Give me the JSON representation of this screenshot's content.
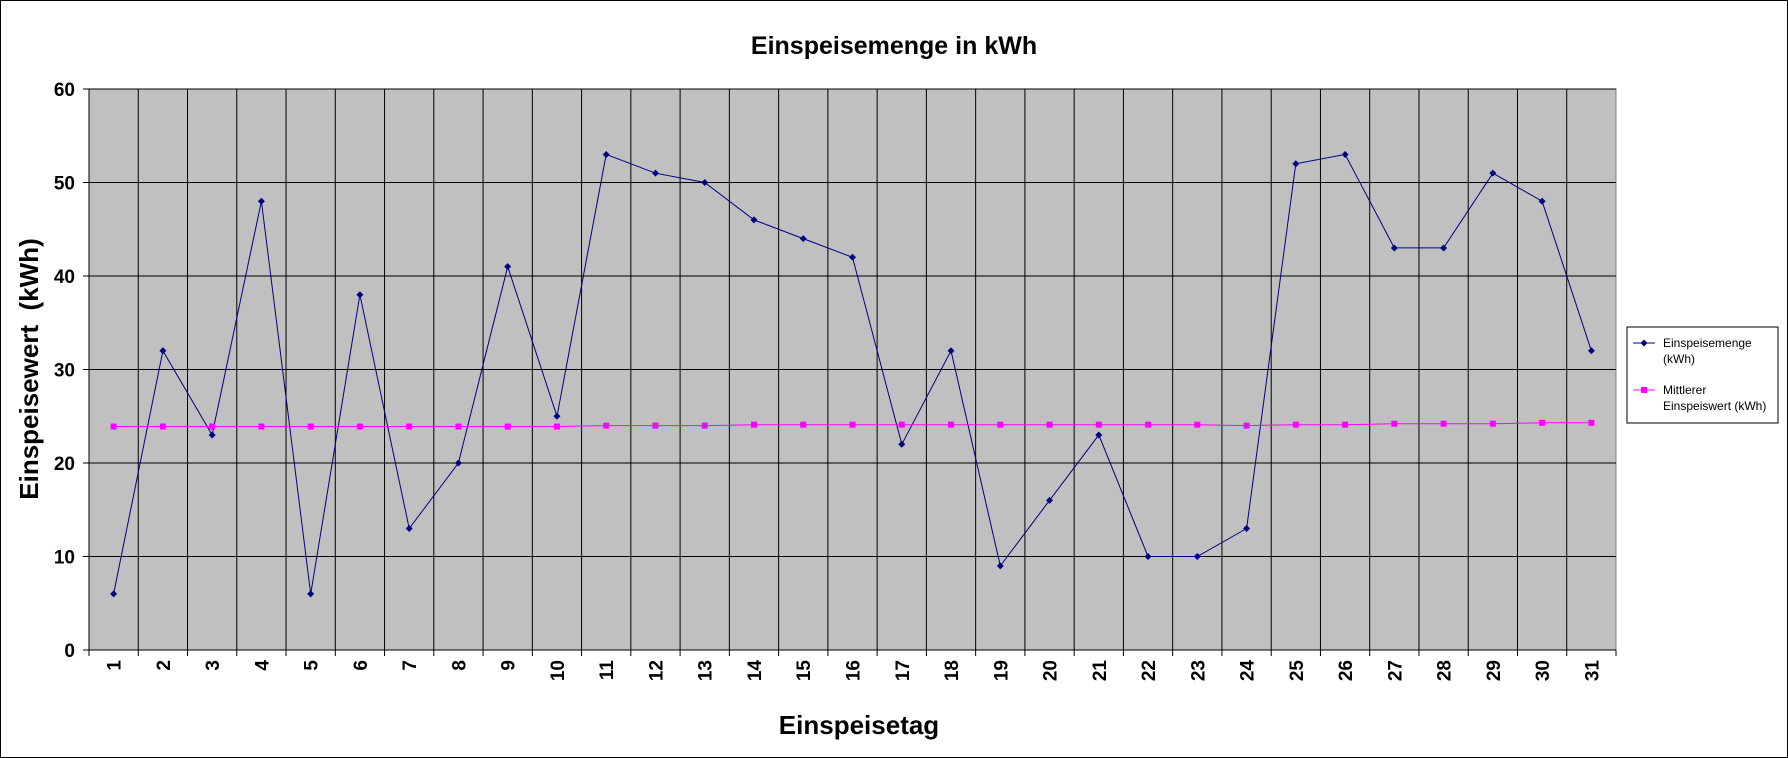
{
  "chart_data": {
    "type": "line",
    "title": "Einspeisemenge in kWh",
    "xlabel": "Einspeisetag",
    "ylabel": "Einspeisewert  (kWh)",
    "ylim": [
      0,
      60
    ],
    "yticks": [
      0,
      10,
      20,
      30,
      40,
      50,
      60
    ],
    "grid": true,
    "legend": "right",
    "categories": [
      1,
      2,
      3,
      4,
      5,
      6,
      7,
      8,
      9,
      10,
      11,
      12,
      13,
      14,
      15,
      16,
      17,
      18,
      19,
      20,
      21,
      22,
      23,
      24,
      25,
      26,
      27,
      28,
      29,
      30,
      31
    ],
    "series": [
      {
        "name": "Einspeisemenge (kWh)",
        "legend_lines": [
          "Einspeisemenge",
          "(kWh)"
        ],
        "color": "#000080",
        "marker": "diamond",
        "values": [
          6,
          32,
          23,
          48,
          6,
          38,
          13,
          20,
          41,
          25,
          53,
          51,
          50,
          46,
          44,
          42,
          22,
          32,
          9,
          16,
          23,
          10,
          10,
          13,
          52,
          53,
          43,
          43,
          51,
          48,
          32
        ]
      },
      {
        "name": "Mittlerer Einspeiswert (kWh)",
        "legend_lines": [
          "Mittlerer",
          "Einspeiswert (kWh)"
        ],
        "color": "#ff00ff",
        "marker": "square",
        "values": [
          23.9,
          23.9,
          23.9,
          23.9,
          23.9,
          23.9,
          23.9,
          23.9,
          23.9,
          23.9,
          24.0,
          24.0,
          24.0,
          24.1,
          24.1,
          24.1,
          24.1,
          24.1,
          24.1,
          24.1,
          24.1,
          24.1,
          24.1,
          24.0,
          24.1,
          24.1,
          24.2,
          24.2,
          24.2,
          24.3,
          24.3
        ]
      }
    ]
  },
  "colors": {
    "plot_background": "#c0c0c0",
    "gridline": "#000000"
  }
}
